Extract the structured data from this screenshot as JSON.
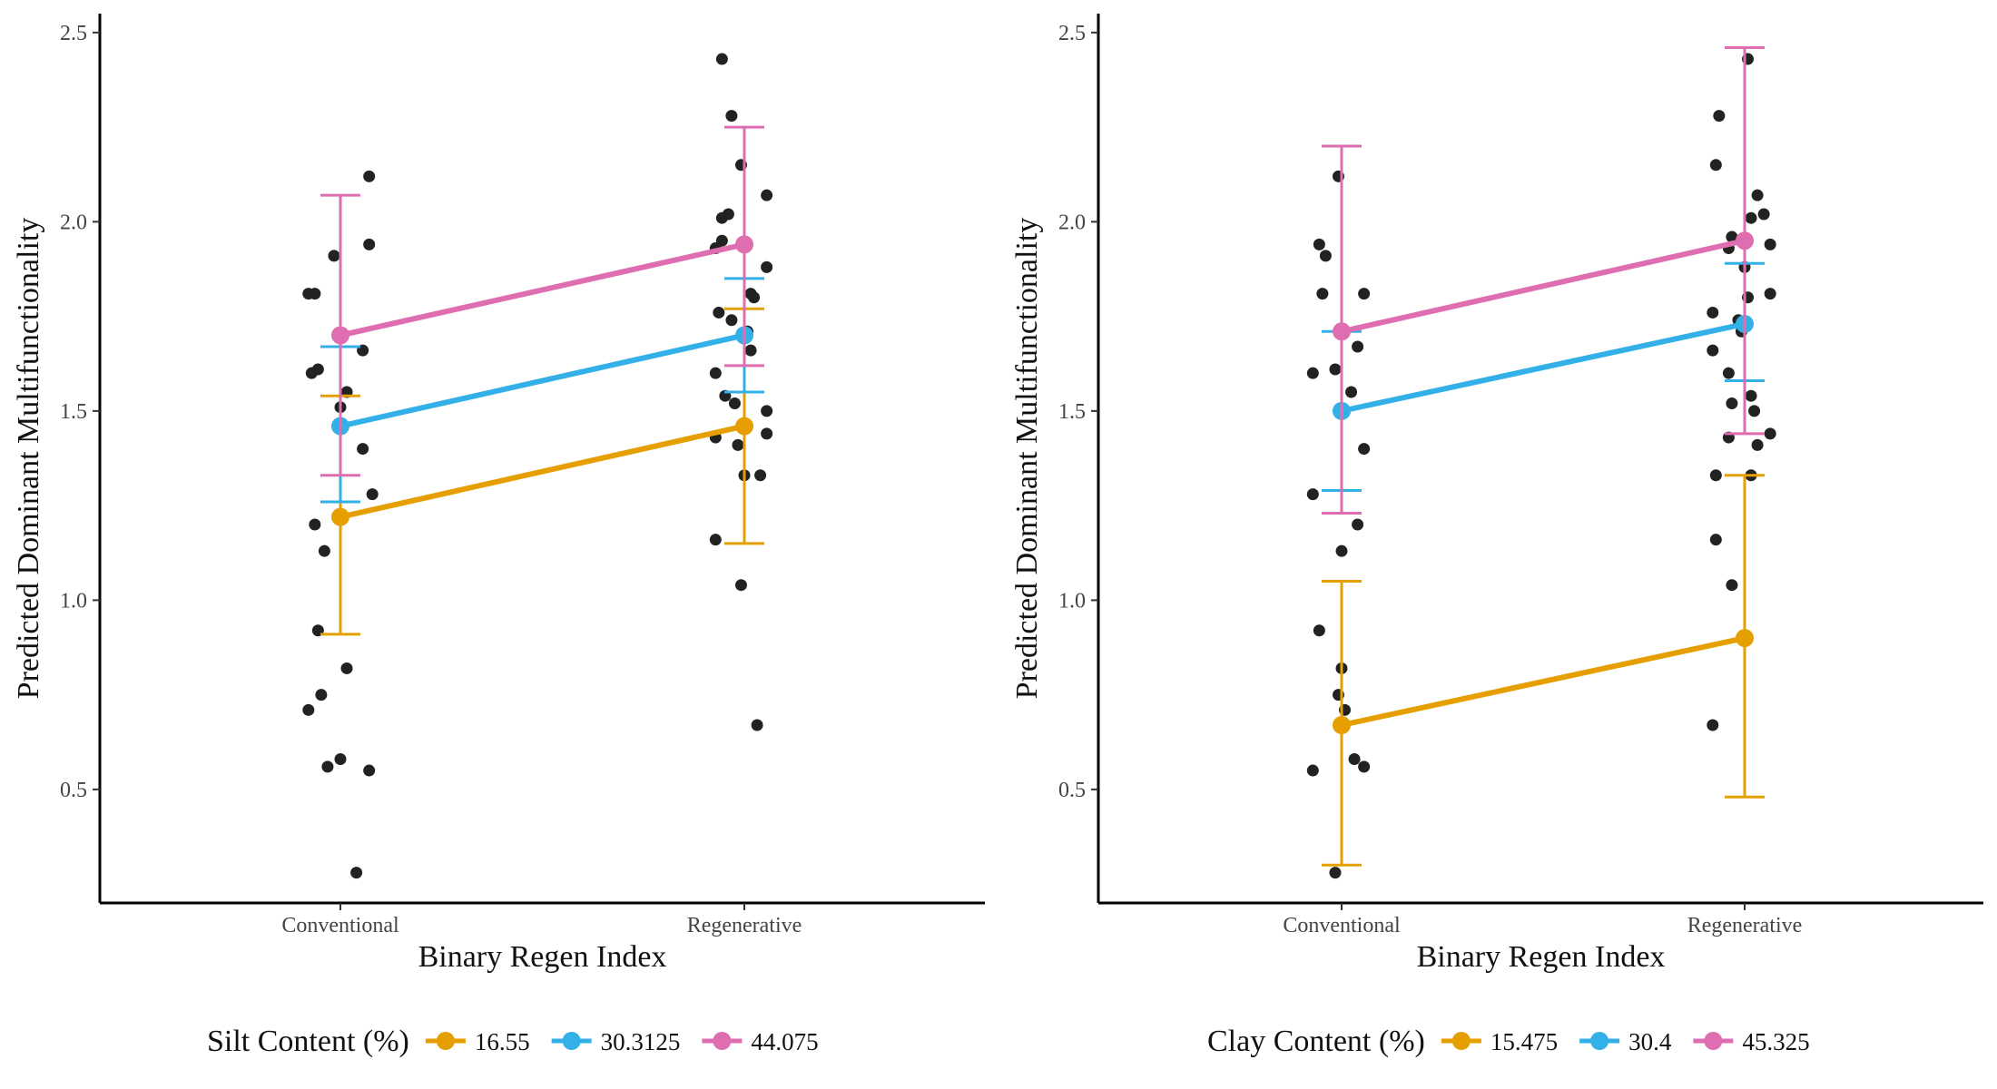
{
  "chart_data": [
    {
      "type": "line",
      "xlabel": "Binary Regen Index",
      "ylabel": "Predicted Dominant Multifunctionality",
      "categories": [
        "Conventional",
        "Regenerative"
      ],
      "ylim": [
        0.2,
        2.55
      ],
      "yticks": [
        0.5,
        1.0,
        1.5,
        2.0,
        2.5
      ],
      "ytick_labels": [
        "0.5",
        "1.0",
        "1.5",
        "2.0",
        "2.5"
      ],
      "legend": {
        "title": "Silt Content (%)",
        "placement": "bottom"
      },
      "grid": false,
      "series": [
        {
          "name": "16.55",
          "color": "#E69F00",
          "values": [
            1.22,
            1.46
          ],
          "lower": [
            0.91,
            1.15
          ],
          "upper": [
            1.54,
            1.77
          ]
        },
        {
          "name": "30.3125",
          "color": "#33B0E8",
          "values": [
            1.46,
            1.7
          ],
          "lower": [
            1.26,
            1.55
          ],
          "upper": [
            1.67,
            1.85
          ]
        },
        {
          "name": "44.075",
          "color": "#DE6EB0",
          "values": [
            1.7,
            1.94
          ],
          "lower": [
            1.33,
            1.62
          ],
          "upper": [
            2.07,
            2.25
          ]
        }
      ],
      "points": {
        "Conventional": [
          [
            -0.1,
            1.81
          ],
          [
            -0.08,
            1.81
          ],
          [
            -0.02,
            1.91
          ],
          [
            0.09,
            2.12
          ],
          [
            0.09,
            1.94
          ],
          [
            -0.09,
            1.6
          ],
          [
            -0.07,
            1.61
          ],
          [
            0.02,
            1.55
          ],
          [
            0.07,
            1.66
          ],
          [
            0.0,
            1.51
          ],
          [
            0.07,
            1.4
          ],
          [
            0.1,
            1.28
          ],
          [
            -0.08,
            1.2
          ],
          [
            -0.05,
            1.13
          ],
          [
            -0.07,
            0.92
          ],
          [
            0.02,
            0.82
          ],
          [
            -0.06,
            0.75
          ],
          [
            -0.1,
            0.71
          ],
          [
            -0.04,
            0.56
          ],
          [
            0.0,
            0.58
          ],
          [
            0.09,
            0.55
          ],
          [
            0.05,
            0.28
          ]
        ],
        "Regenerative": [
          [
            -0.07,
            2.43
          ],
          [
            -0.04,
            2.28
          ],
          [
            -0.01,
            2.15
          ],
          [
            0.07,
            2.07
          ],
          [
            -0.05,
            2.02
          ],
          [
            -0.07,
            2.01
          ],
          [
            -0.09,
            1.93
          ],
          [
            -0.07,
            1.95
          ],
          [
            0.07,
            1.88
          ],
          [
            0.02,
            1.81
          ],
          [
            0.03,
            1.8
          ],
          [
            -0.08,
            1.76
          ],
          [
            -0.04,
            1.74
          ],
          [
            0.01,
            1.71
          ],
          [
            0.02,
            1.66
          ],
          [
            -0.09,
            1.6
          ],
          [
            -0.06,
            1.54
          ],
          [
            -0.03,
            1.52
          ],
          [
            0.07,
            1.5
          ],
          [
            0.07,
            1.44
          ],
          [
            -0.09,
            1.43
          ],
          [
            -0.02,
            1.41
          ],
          [
            0.0,
            1.33
          ],
          [
            0.05,
            1.33
          ],
          [
            -0.09,
            1.16
          ],
          [
            -0.01,
            1.04
          ],
          [
            0.04,
            0.67
          ]
        ]
      }
    },
    {
      "type": "line",
      "xlabel": "Binary Regen Index",
      "ylabel": "Predicted Dominant Multifunctionality",
      "categories": [
        "Conventional",
        "Regenerative"
      ],
      "ylim": [
        0.2,
        2.55
      ],
      "yticks": [
        0.5,
        1.0,
        1.5,
        2.0,
        2.5
      ],
      "ytick_labels": [
        "0.5",
        "1.0",
        "1.5",
        "2.0",
        "2.5"
      ],
      "legend": {
        "title": "Clay Content (%)",
        "placement": "bottom"
      },
      "grid": false,
      "series": [
        {
          "name": "15.475",
          "color": "#E69F00",
          "values": [
            0.67,
            0.9
          ],
          "lower": [
            0.3,
            0.48
          ],
          "upper": [
            1.05,
            1.33
          ]
        },
        {
          "name": "30.4",
          "color": "#33B0E8",
          "values": [
            1.5,
            1.73
          ],
          "lower": [
            1.29,
            1.58
          ],
          "upper": [
            1.71,
            1.89
          ]
        },
        {
          "name": "45.325",
          "color": "#DE6EB0",
          "values": [
            1.71,
            1.95
          ],
          "lower": [
            1.23,
            1.44
          ],
          "upper": [
            2.2,
            2.46
          ]
        }
      ],
      "points": {
        "Conventional": [
          [
            -0.01,
            2.12
          ],
          [
            -0.07,
            1.94
          ],
          [
            -0.05,
            1.91
          ],
          [
            -0.06,
            1.81
          ],
          [
            0.07,
            1.81
          ],
          [
            0.05,
            1.67
          ],
          [
            -0.09,
            1.6
          ],
          [
            -0.02,
            1.61
          ],
          [
            0.03,
            1.55
          ],
          [
            0.01,
            1.5
          ],
          [
            0.07,
            1.4
          ],
          [
            -0.09,
            1.28
          ],
          [
            0.05,
            1.2
          ],
          [
            0.0,
            1.13
          ],
          [
            -0.07,
            0.92
          ],
          [
            0.0,
            0.82
          ],
          [
            -0.01,
            0.75
          ],
          [
            0.01,
            0.71
          ],
          [
            0.04,
            0.58
          ],
          [
            -0.09,
            0.55
          ],
          [
            0.07,
            0.56
          ],
          [
            -0.02,
            0.28
          ]
        ],
        "Regenerative": [
          [
            0.01,
            2.43
          ],
          [
            -0.08,
            2.28
          ],
          [
            -0.09,
            2.15
          ],
          [
            0.04,
            2.07
          ],
          [
            0.06,
            2.02
          ],
          [
            0.02,
            2.01
          ],
          [
            -0.05,
            1.93
          ],
          [
            -0.04,
            1.96
          ],
          [
            0.08,
            1.94
          ],
          [
            0.0,
            1.88
          ],
          [
            0.08,
            1.81
          ],
          [
            0.01,
            1.8
          ],
          [
            -0.1,
            1.76
          ],
          [
            -0.02,
            1.74
          ],
          [
            -0.01,
            1.71
          ],
          [
            -0.1,
            1.66
          ],
          [
            -0.05,
            1.6
          ],
          [
            0.03,
            1.5
          ],
          [
            -0.04,
            1.52
          ],
          [
            0.02,
            1.54
          ],
          [
            0.08,
            1.44
          ],
          [
            0.04,
            1.41
          ],
          [
            -0.05,
            1.43
          ],
          [
            -0.09,
            1.33
          ],
          [
            0.02,
            1.33
          ],
          [
            -0.09,
            1.16
          ],
          [
            -0.04,
            1.04
          ],
          [
            -0.1,
            0.67
          ]
        ]
      }
    }
  ]
}
